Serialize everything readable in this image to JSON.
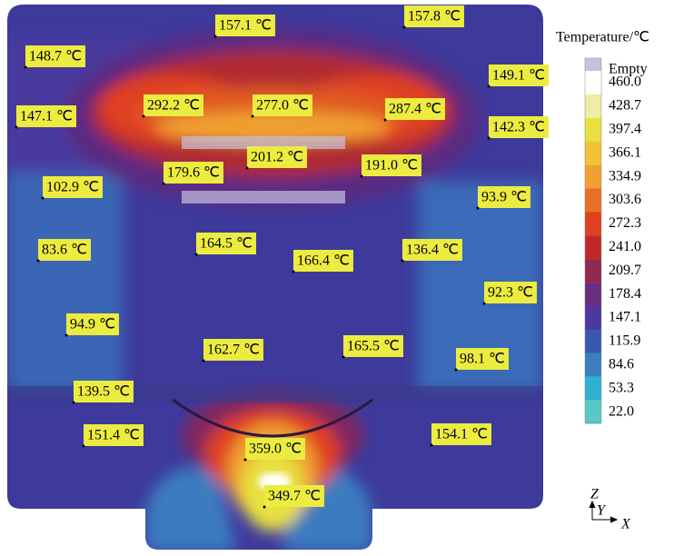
{
  "colorbar": {
    "title": "Temperature/℃",
    "labels": [
      "Empty",
      "460.0",
      "428.7",
      "397.4",
      "366.1",
      "334.9",
      "303.6",
      "272.3",
      "241.0",
      "209.7",
      "178.4",
      "147.1",
      "115.9",
      "84.6",
      "53.3",
      "22.0"
    ]
  },
  "axes": {
    "z": "Z",
    "y": "Y",
    "x": "X"
  },
  "annotations": [
    "157.1 ℃",
    "157.8 ℃",
    "148.7 ℃",
    "149.1 ℃",
    "147.1 ℃",
    "292.2 ℃",
    "277.0 ℃",
    "287.4 ℃",
    "142.3 ℃",
    "201.2 ℃",
    "179.6 ℃",
    "191.0 ℃",
    "102.9 ℃",
    "93.9 ℃",
    "164.5 ℃",
    "166.4 ℃",
    "136.4 ℃",
    "83.6 ℃",
    "92.3 ℃",
    "94.9 ℃",
    "162.7 ℃",
    "165.5 ℃",
    "98.1 ℃",
    "139.5 ℃",
    "151.4 ℃",
    "154.1 ℃",
    "359.0 ℃",
    "349.7 ℃"
  ]
}
